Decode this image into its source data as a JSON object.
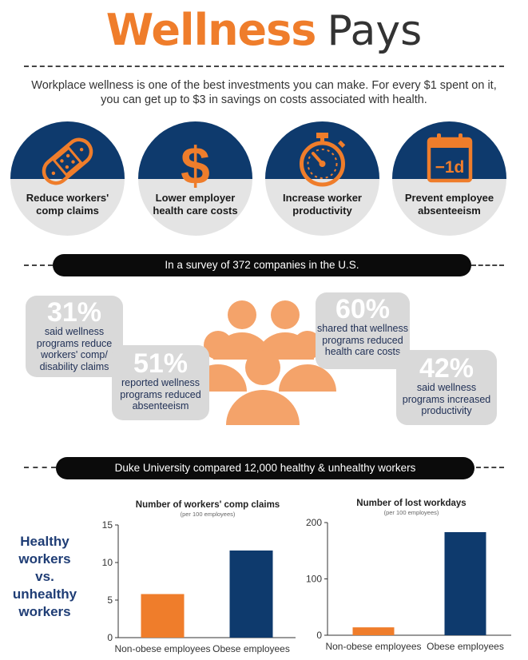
{
  "header": {
    "title_bold": "Wellness",
    "title_light": "Pays"
  },
  "intro": "Workplace wellness is one of the best investments you can make. For every $1 spent on it, you can get up to $3 in savings on costs associated with health.",
  "benefits": [
    {
      "icon": "bandage-icon",
      "label": "Reduce workers' comp claims"
    },
    {
      "icon": "dollar-icon",
      "label": "Lower employer health care costs"
    },
    {
      "icon": "stopwatch-icon",
      "label": "Increase worker productivity"
    },
    {
      "icon": "calendar-icon",
      "label": "Prevent employee absenteeism",
      "calendar_text": "−1d"
    }
  ],
  "survey": {
    "banner": "In a survey of 372 companies in the U.S.",
    "stats": [
      {
        "pct": "31%",
        "text": "said wellness programs reduce workers' comp/ disability claims"
      },
      {
        "pct": "51%",
        "text": "reported wellness programs reduced absenteeism"
      },
      {
        "pct": "60%",
        "text": "shared that wellness programs reduced health care costs"
      },
      {
        "pct": "42%",
        "text": "said wellness programs increased productivity"
      }
    ]
  },
  "duke": {
    "banner": "Duke University compared 12,000 healthy & unhealthy workers",
    "side_label": "Healthy workers vs. unhealthy workers"
  },
  "colors": {
    "orange": "#ef7d2b",
    "navy": "#0e3a6d",
    "grey": "#d9d9d9",
    "people": "#f4a36a"
  },
  "chart_data": [
    {
      "type": "bar",
      "title": "Number of workers' comp claims",
      "subtitle": "(per 100 employees)",
      "categories": [
        "Non-obese employees",
        "Obese employees"
      ],
      "values": [
        5.8,
        11.6
      ],
      "colors": [
        "#ef7d2b",
        "#0e3a6d"
      ],
      "ylim": [
        0,
        15
      ],
      "yticks": [
        0,
        5,
        10,
        15
      ],
      "grid": false
    },
    {
      "type": "bar",
      "title": "Number of lost workdays",
      "subtitle": "(per 100 employees)",
      "categories": [
        "Non-obese employees",
        "Obese employees"
      ],
      "values": [
        14,
        183
      ],
      "colors": [
        "#ef7d2b",
        "#0e3a6d"
      ],
      "ylim": [
        0,
        200
      ],
      "yticks": [
        0,
        100,
        200
      ],
      "grid": false
    }
  ]
}
